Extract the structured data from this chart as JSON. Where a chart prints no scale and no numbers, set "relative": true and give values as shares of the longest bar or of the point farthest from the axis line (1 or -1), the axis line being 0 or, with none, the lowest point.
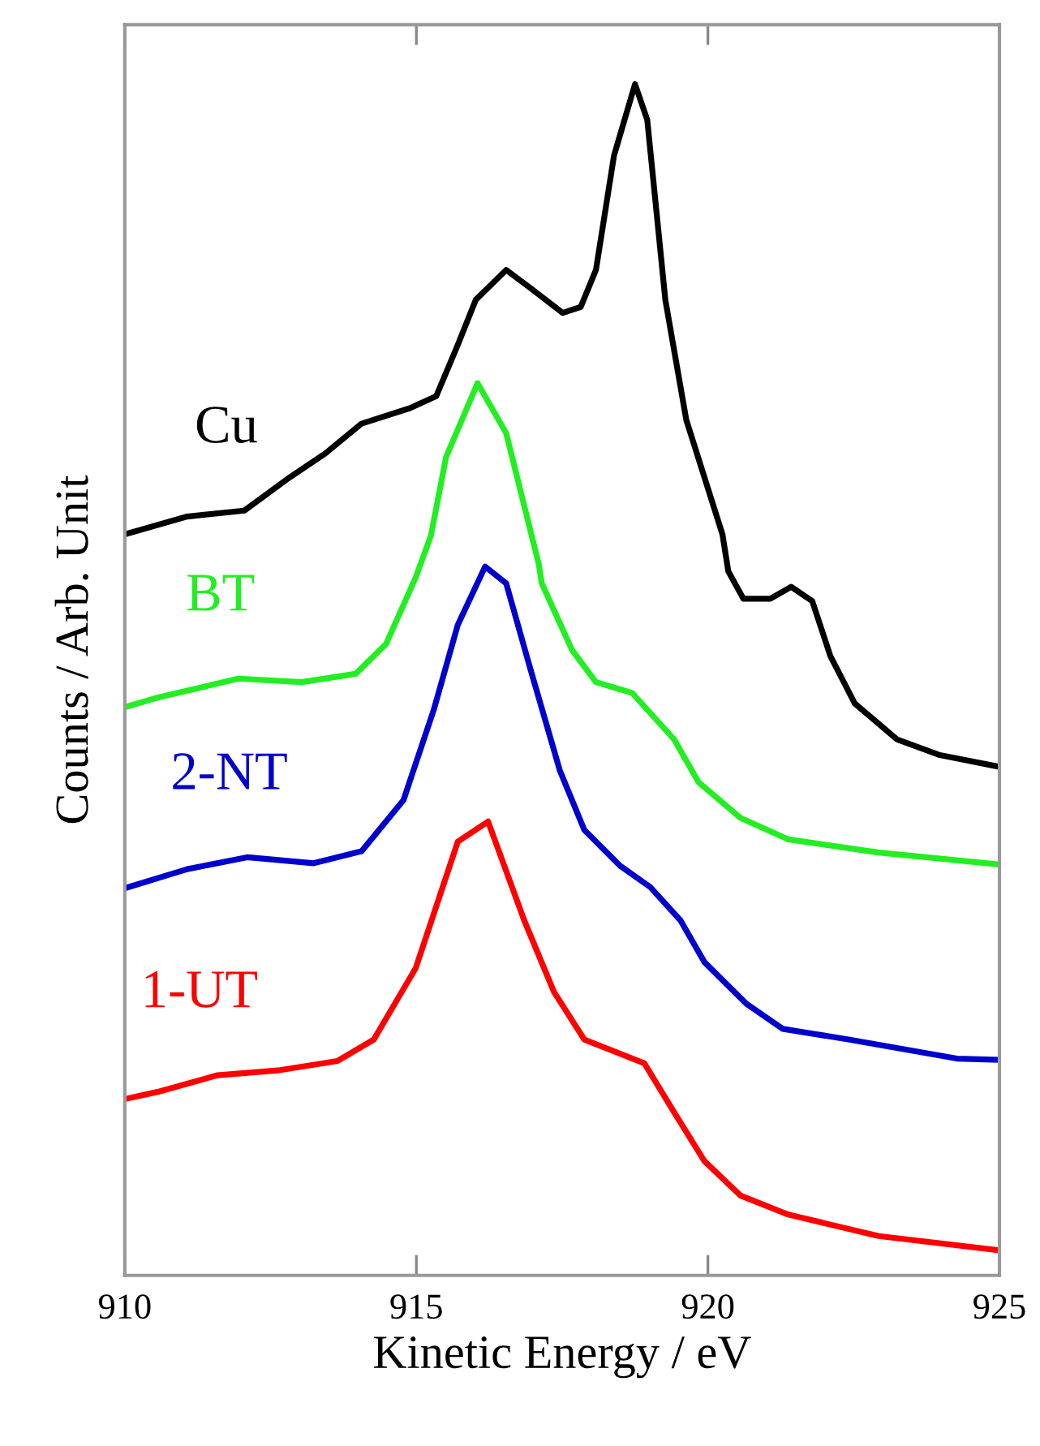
{
  "chart_data": {
    "type": "line",
    "xlabel": "Kinetic Energy / eV",
    "ylabel": "Counts / Arb. Unit",
    "relative": true,
    "xlim": [
      910,
      925
    ],
    "xticks": [
      910,
      915,
      920,
      925
    ],
    "grid": false,
    "legend": false,
    "marker": "none",
    "line_style": "solid",
    "series": [
      {
        "name": "Cu",
        "color": "#000000",
        "x": [
          910.0,
          911.07,
          912.05,
          912.83,
          913.44,
          914.06,
          914.89,
          915.34,
          915.71,
          916.02,
          916.54,
          916.95,
          917.51,
          917.82,
          918.08,
          918.39,
          918.75,
          918.96,
          919.27,
          919.63,
          920.25,
          920.35,
          920.61,
          921.07,
          921.43,
          921.79,
          922.1,
          922.52,
          923.24,
          923.96,
          924.99
        ],
        "values": [
          0.622,
          0.637,
          0.642,
          0.67,
          0.69,
          0.715,
          0.728,
          0.738,
          0.781,
          0.819,
          0.844,
          0.829,
          0.808,
          0.813,
          0.844,
          0.94,
          1.0,
          0.97,
          0.819,
          0.718,
          0.622,
          0.591,
          0.568,
          0.568,
          0.578,
          0.566,
          0.52,
          0.48,
          0.45,
          0.437,
          0.427
        ]
      },
      {
        "name": "BT",
        "color": "#22ee22",
        "x": [
          910.0,
          910.56,
          911.95,
          913.03,
          913.96,
          914.48,
          914.99,
          915.25,
          915.51,
          916.05,
          916.54,
          917.1,
          917.15,
          917.67,
          918.08,
          918.7,
          919.42,
          919.84,
          920.56,
          921.38,
          922.93,
          924.99
        ],
        "values": [
          0.477,
          0.485,
          0.501,
          0.498,
          0.505,
          0.53,
          0.586,
          0.621,
          0.687,
          0.749,
          0.707,
          0.597,
          0.581,
          0.525,
          0.498,
          0.489,
          0.45,
          0.414,
          0.384,
          0.366,
          0.355,
          0.345
        ]
      },
      {
        "name": "2-NT",
        "color": "#0000cc",
        "x": [
          910.0,
          911.07,
          912.1,
          913.24,
          914.06,
          914.78,
          915.3,
          915.71,
          916.18,
          916.54,
          916.95,
          917.46,
          917.88,
          918.49,
          919.01,
          919.53,
          919.94,
          920.66,
          921.28,
          922.41,
          924.27,
          924.99
        ],
        "values": [
          0.325,
          0.341,
          0.351,
          0.346,
          0.356,
          0.399,
          0.475,
          0.546,
          0.595,
          0.581,
          0.51,
          0.424,
          0.374,
          0.344,
          0.326,
          0.298,
          0.263,
          0.228,
          0.207,
          0.198,
          0.182,
          0.181
        ]
      },
      {
        "name": "1-UT",
        "color": "#ff0000",
        "x": [
          910.0,
          910.56,
          911.59,
          912.62,
          913.65,
          914.27,
          914.99,
          915.71,
          916.23,
          916.85,
          917.36,
          917.88,
          918.91,
          919.42,
          919.94,
          920.56,
          921.38,
          922.93,
          924.99
        ],
        "values": [
          0.148,
          0.154,
          0.168,
          0.172,
          0.18,
          0.198,
          0.258,
          0.364,
          0.381,
          0.298,
          0.238,
          0.198,
          0.178,
          0.137,
          0.096,
          0.067,
          0.051,
          0.033,
          0.021
        ]
      }
    ]
  }
}
